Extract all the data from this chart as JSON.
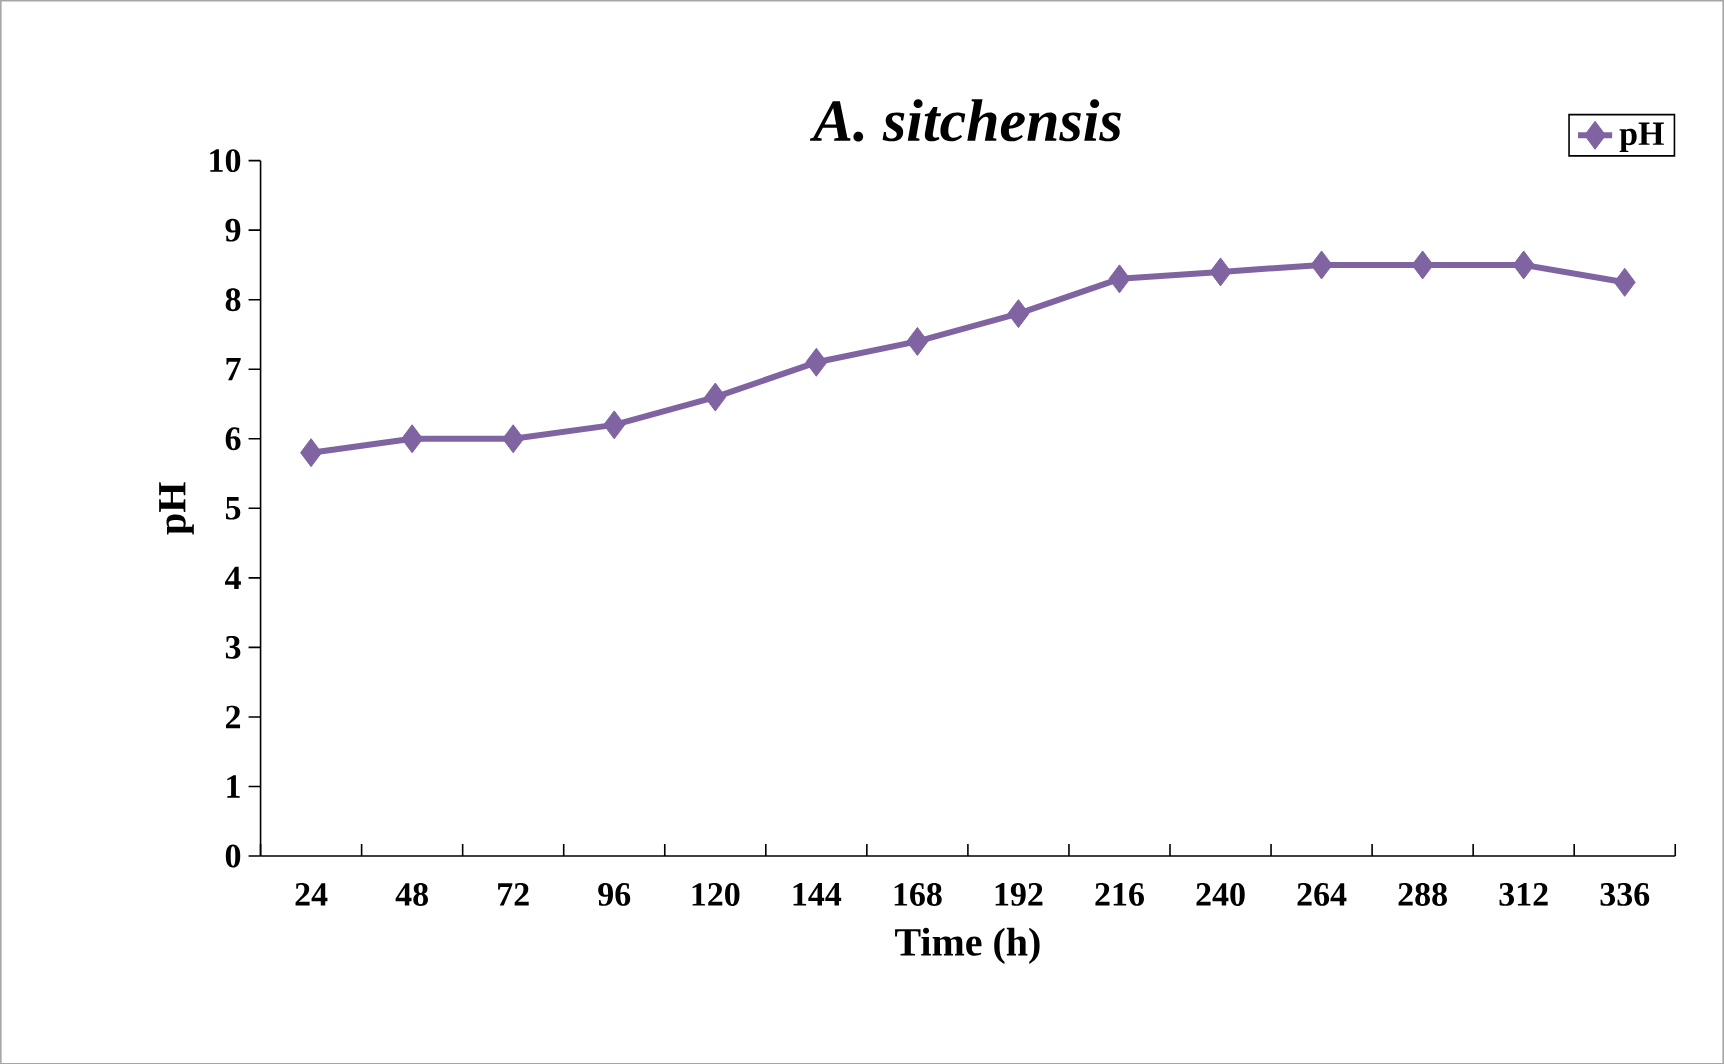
{
  "chart_data": {
    "type": "line",
    "title": "*A. sitchensis*",
    "xlabel": "Time (h)",
    "ylabel": "pH",
    "categories": [
      "24",
      "48",
      "72",
      "96",
      "120",
      "144",
      "168",
      "192",
      "216",
      "240",
      "264",
      "288",
      "312",
      "336"
    ],
    "series": [
      {
        "name": "pH",
        "color": "#8064a2",
        "values": [
          5.8,
          6.0,
          6.0,
          6.2,
          6.6,
          7.1,
          7.4,
          7.8,
          8.3,
          8.4,
          8.5,
          8.5,
          8.5,
          8.25
        ]
      }
    ],
    "ylim": [
      0,
      10
    ],
    "yticks": [
      0,
      1,
      2,
      3,
      4,
      5,
      6,
      7,
      8,
      9,
      10
    ],
    "marker": "diamond",
    "line_style": "solid",
    "legend": "top right",
    "grid": false
  }
}
